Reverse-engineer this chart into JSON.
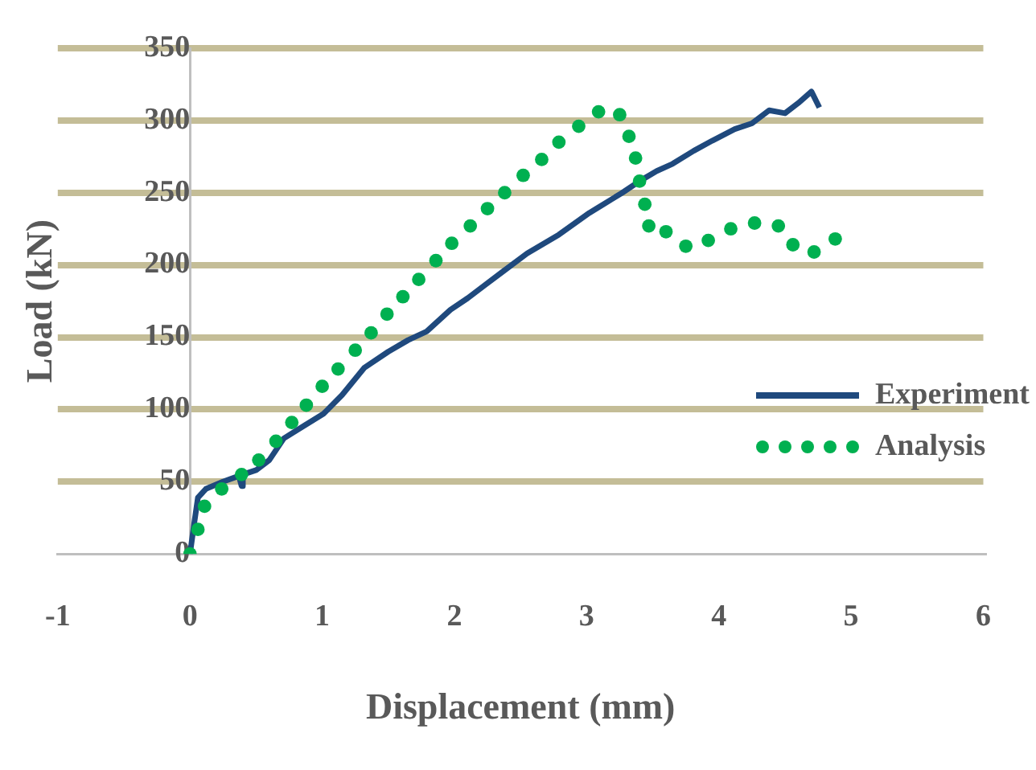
{
  "chart_data": {
    "type": "line",
    "xlabel": "Displacement (mm)",
    "ylabel": "Load (kN)",
    "xlim": [
      -1,
      6
    ],
    "xticks": [
      -1,
      0,
      1,
      2,
      3,
      4,
      5,
      6
    ],
    "ylim": [
      0,
      350
    ],
    "yticks": [
      0,
      50,
      100,
      150,
      200,
      250,
      300,
      350
    ],
    "grid": "y",
    "legend": "right",
    "series": [
      {
        "name": "Experiment",
        "type": "line",
        "color": "#1f497d",
        "marker": "none",
        "line_style": "solid",
        "x": [
          0,
          0.03,
          0.06,
          0.12,
          0.25,
          0.37,
          0.39,
          0.4,
          0.5,
          0.6,
          0.71,
          0.85,
          1.01,
          1.15,
          1.32,
          1.5,
          1.65,
          1.79,
          1.97,
          2.1,
          2.23,
          2.36,
          2.55,
          2.79,
          3.02,
          3.27,
          3.4,
          3.53,
          3.65,
          3.81,
          3.95,
          4.12,
          4.25,
          4.38,
          4.5,
          4.6,
          4.7,
          4.76
        ],
        "values": [
          0,
          20,
          39,
          45,
          50,
          54,
          47,
          55,
          58,
          65,
          80,
          88,
          97,
          110,
          129,
          140,
          148,
          154,
          169,
          177,
          186,
          195,
          208,
          221,
          236,
          250,
          258,
          265,
          270,
          279,
          286,
          294,
          298,
          307,
          305,
          312,
          320,
          309
        ]
      },
      {
        "name": "Analysis",
        "type": "scatter",
        "color": "#00b050",
        "marker": "circle",
        "x": [
          0,
          0.06,
          0.11,
          0.24,
          0.39,
          0.52,
          0.65,
          0.77,
          0.88,
          1.0,
          1.12,
          1.25,
          1.37,
          1.49,
          1.61,
          1.73,
          1.86,
          1.98,
          2.12,
          2.25,
          2.38,
          2.52,
          2.66,
          2.79,
          2.94,
          3.09,
          3.25,
          3.32,
          3.37,
          3.4,
          3.44,
          3.47,
          3.6,
          3.75,
          3.92,
          4.09,
          4.27,
          4.45,
          4.56,
          4.72,
          4.88
        ],
        "values": [
          0,
          17,
          33,
          45,
          55,
          65,
          78,
          91,
          103,
          116,
          128,
          141,
          153,
          166,
          178,
          190,
          203,
          215,
          227,
          239,
          250,
          262,
          273,
          285,
          296,
          306,
          304,
          289,
          274,
          258,
          242,
          227,
          223,
          213,
          217,
          225,
          229,
          227,
          214,
          209,
          218
        ]
      }
    ]
  }
}
